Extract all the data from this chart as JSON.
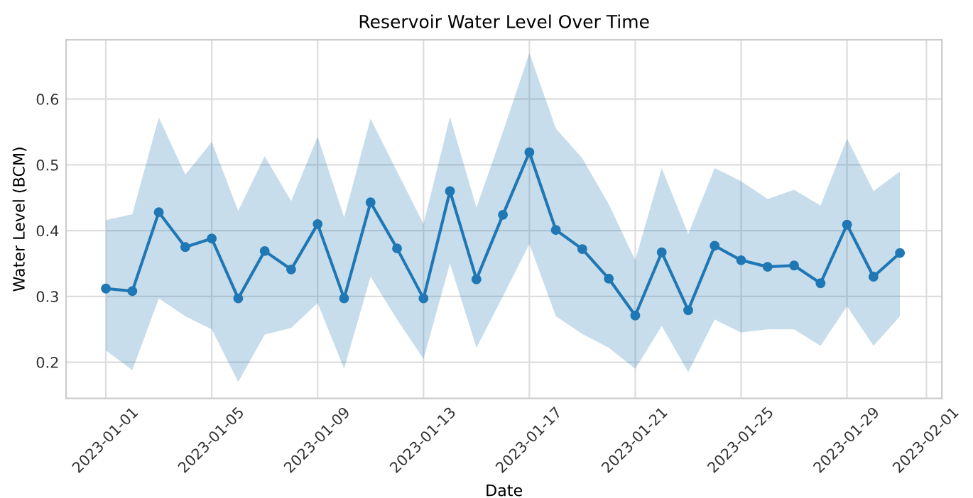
{
  "chart_data": {
    "type": "line",
    "title": "Reservoir Water Level Over Time",
    "xlabel": "Date",
    "ylabel": "Water Level (BCM)",
    "x": [
      "2023-01-01",
      "2023-01-02",
      "2023-01-03",
      "2023-01-04",
      "2023-01-05",
      "2023-01-06",
      "2023-01-07",
      "2023-01-08",
      "2023-01-09",
      "2023-01-10",
      "2023-01-11",
      "2023-01-12",
      "2023-01-13",
      "2023-01-14",
      "2023-01-15",
      "2023-01-16",
      "2023-01-17",
      "2023-01-18",
      "2023-01-19",
      "2023-01-20",
      "2023-01-21",
      "2023-01-22",
      "2023-01-23",
      "2023-01-24",
      "2023-01-25",
      "2023-01-26",
      "2023-01-27",
      "2023-01-28",
      "2023-01-29",
      "2023-01-30",
      "2023-01-31"
    ],
    "series": [
      {
        "color": "#1f77b4",
        "values": [
          0.312,
          0.308,
          0.428,
          0.375,
          0.388,
          0.297,
          0.369,
          0.341,
          0.41,
          0.297,
          0.443,
          0.373,
          0.297,
          0.46,
          0.326,
          0.424,
          0.519,
          0.401,
          0.372,
          0.327,
          0.271,
          0.367,
          0.279,
          0.377,
          0.355,
          0.345,
          0.347,
          0.32,
          0.409,
          0.33,
          0.366
        ],
        "upper": [
          0.416,
          0.425,
          0.572,
          0.485,
          0.535,
          0.43,
          0.513,
          0.445,
          0.543,
          0.42,
          0.57,
          0.49,
          0.41,
          0.573,
          0.435,
          0.55,
          0.67,
          0.555,
          0.51,
          0.44,
          0.355,
          0.495,
          0.395,
          0.495,
          0.475,
          0.448,
          0.462,
          0.438,
          0.54,
          0.46,
          0.49
        ],
        "lower": [
          0.218,
          0.188,
          0.297,
          0.27,
          0.25,
          0.17,
          0.242,
          0.252,
          0.29,
          0.19,
          0.33,
          0.265,
          0.205,
          0.35,
          0.222,
          0.3,
          0.38,
          0.27,
          0.243,
          0.222,
          0.19,
          0.255,
          0.185,
          0.265,
          0.245,
          0.25,
          0.25,
          0.225,
          0.285,
          0.225,
          0.27
        ]
      }
    ],
    "xlim": [
      "2022-12-30T12:00",
      "2023-02-01T14:00"
    ],
    "xticks": [
      "2023-01-01",
      "2023-01-05",
      "2023-01-09",
      "2023-01-13",
      "2023-01-17",
      "2023-01-21",
      "2023-01-25",
      "2023-01-29",
      "2023-02-01"
    ],
    "ylim": [
      0.145,
      0.69
    ],
    "yticks": [
      0.2,
      0.3,
      0.4,
      0.5,
      0.6
    ],
    "grid": true,
    "marker": "circle",
    "line_style": "solid"
  }
}
